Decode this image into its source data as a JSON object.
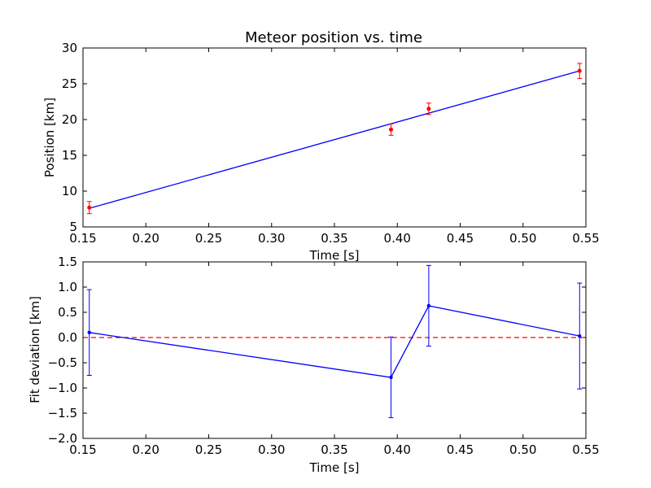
{
  "chart_data": [
    {
      "type": "scatter",
      "title": "Meteor position vs. time",
      "xlabel": "Time [s]",
      "ylabel": "Position [km]",
      "xlim": [
        0.15,
        0.55
      ],
      "ylim": [
        5,
        30
      ],
      "xticks": [
        "0.15",
        "0.20",
        "0.25",
        "0.30",
        "0.35",
        "0.40",
        "0.45",
        "0.50",
        "0.55"
      ],
      "yticks": [
        "5",
        "10",
        "15",
        "20",
        "25",
        "30"
      ],
      "grid": false,
      "colors": {
        "points": "#ff0000",
        "fit": "#0000ff"
      },
      "series": [
        {
          "style": "points-with-errorbars",
          "x": [
            0.155,
            0.395,
            0.425,
            0.545
          ],
          "y": [
            7.7,
            18.6,
            21.5,
            26.8
          ],
          "yerr": [
            0.85,
            0.8,
            0.8,
            1.05
          ]
        },
        {
          "style": "fit-line",
          "x": [
            0.155,
            0.545
          ],
          "y": [
            7.6,
            26.8
          ]
        }
      ]
    },
    {
      "type": "line",
      "title": "",
      "xlabel": "Time [s]",
      "ylabel": "Fit deviation [km]",
      "xlim": [
        0.15,
        0.55
      ],
      "ylim": [
        -2.0,
        1.5
      ],
      "xticks": [
        "0.15",
        "0.20",
        "0.25",
        "0.30",
        "0.35",
        "0.40",
        "0.45",
        "0.50",
        "0.55"
      ],
      "yticks": [
        "−2.0",
        "−1.5",
        "−1.0",
        "−0.5",
        "0.0",
        "0.5",
        "1.0",
        "1.5"
      ],
      "grid": false,
      "colors": {
        "line": "#0000ff",
        "zero": "#ff0000"
      },
      "series": [
        {
          "style": "line-with-errorbars",
          "x": [
            0.155,
            0.395,
            0.425,
            0.545
          ],
          "y": [
            0.1,
            -0.79,
            0.63,
            0.03
          ],
          "yerr": [
            0.85,
            0.8,
            0.8,
            1.05
          ]
        },
        {
          "style": "dashed-reference",
          "y": 0.0
        }
      ]
    }
  ]
}
